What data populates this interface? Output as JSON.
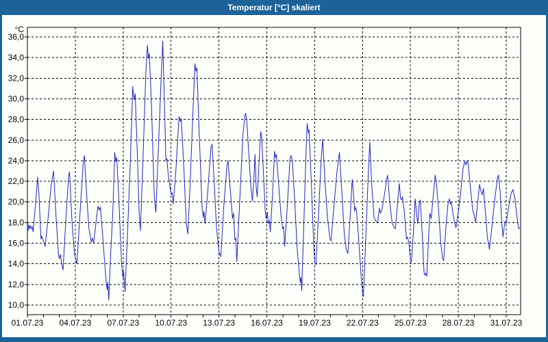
{
  "window": {
    "title": "Temperatur [°C] skaliert"
  },
  "colors": {
    "titlebar": "#1B6399",
    "window_border": "#1B6399",
    "background": "#FDFFFA",
    "plot_background": "#FDFFFA",
    "grid": "#000000",
    "frame": "#000000",
    "line": "#2121CC",
    "title_text": "#FFFFFF",
    "axis_text": "#000000"
  },
  "chart_data": {
    "type": "line",
    "title": "Temperatur [°C] skaliert",
    "ylabel": "°C",
    "xlabel": "",
    "ylim": [
      10,
      36
    ],
    "xlim": [
      1,
      31.9
    ],
    "grid": "dashed",
    "legend": "none",
    "y_ticks": [
      {
        "value": 36,
        "label": "36,0"
      },
      {
        "value": 34,
        "label": "34,0"
      },
      {
        "value": 32,
        "label": "32,0"
      },
      {
        "value": 30,
        "label": "30,0"
      },
      {
        "value": 28,
        "label": "28,0"
      },
      {
        "value": 26,
        "label": "26,0"
      },
      {
        "value": 24,
        "label": "24,0"
      },
      {
        "value": 22,
        "label": "22,0"
      },
      {
        "value": 20,
        "label": "20,0"
      },
      {
        "value": 18,
        "label": "18,0"
      },
      {
        "value": 16,
        "label": "16,0"
      },
      {
        "value": 14,
        "label": "14,0"
      },
      {
        "value": 12,
        "label": "12,0"
      },
      {
        "value": 10,
        "label": "10,0"
      }
    ],
    "x_ticks": [
      {
        "day": 1,
        "label": "01.07.23"
      },
      {
        "day": 4,
        "label": "04.07.23"
      },
      {
        "day": 7,
        "label": "07.07.23"
      },
      {
        "day": 10,
        "label": "10.07.23"
      },
      {
        "day": 13,
        "label": "13.07.23"
      },
      {
        "day": 16,
        "label": "16.07.23"
      },
      {
        "day": 19,
        "label": "19.07.23"
      },
      {
        "day": 22,
        "label": "22.07.23"
      },
      {
        "day": 25,
        "label": "25.07.23"
      },
      {
        "day": 28,
        "label": "28.07.23"
      },
      {
        "day": 31,
        "label": "31.07.23"
      }
    ],
    "x_minor_tick_days": [
      1,
      2,
      3,
      4,
      5,
      6,
      7,
      8,
      9,
      10,
      11,
      12,
      13,
      14,
      15,
      16,
      17,
      18,
      19,
      20,
      21,
      22,
      23,
      24,
      25,
      26,
      27,
      28,
      29,
      30,
      31
    ],
    "series": [
      {
        "name": "Temperatur [°C]",
        "color": "#2121CC",
        "points": [
          [
            1.0,
            17.5
          ],
          [
            1.04,
            17.2
          ],
          [
            1.08,
            17.8
          ],
          [
            1.13,
            17.4
          ],
          [
            1.18,
            17.7
          ],
          [
            1.25,
            17.4
          ],
          [
            1.3,
            17.6
          ],
          [
            1.36,
            17.1
          ],
          [
            1.5,
            19.6
          ],
          [
            1.64,
            22.4
          ],
          [
            1.72,
            20.8
          ],
          [
            1.85,
            16.4
          ],
          [
            1.9,
            16.7
          ],
          [
            2.0,
            16.2
          ],
          [
            2.11,
            15.7
          ],
          [
            2.3,
            18.5
          ],
          [
            2.5,
            21.8
          ],
          [
            2.64,
            23.0
          ],
          [
            2.8,
            18.5
          ],
          [
            2.95,
            14.9
          ],
          [
            3.0,
            14.5
          ],
          [
            3.07,
            14.9
          ],
          [
            3.15,
            14.0
          ],
          [
            3.23,
            13.4
          ],
          [
            3.4,
            18.0
          ],
          [
            3.58,
            22.5
          ],
          [
            3.64,
            22.9
          ],
          [
            3.8,
            18.0
          ],
          [
            3.95,
            15.0
          ],
          [
            4.1,
            14.0
          ],
          [
            4.3,
            19.0
          ],
          [
            4.5,
            23.8
          ],
          [
            4.57,
            24.5
          ],
          [
            4.7,
            21.0
          ],
          [
            4.85,
            17.5
          ],
          [
            5.0,
            16.1
          ],
          [
            5.07,
            16.5
          ],
          [
            5.15,
            16.0
          ],
          [
            5.3,
            18.0
          ],
          [
            5.42,
            19.6
          ],
          [
            5.5,
            19.2
          ],
          [
            5.57,
            19.5
          ],
          [
            5.68,
            17.5
          ],
          [
            5.8,
            15.0
          ],
          [
            5.95,
            12.0
          ],
          [
            6.0,
            11.5
          ],
          [
            6.04,
            12.2
          ],
          [
            6.1,
            10.5
          ],
          [
            6.2,
            14.5
          ],
          [
            6.35,
            19.0
          ],
          [
            6.47,
            24.8
          ],
          [
            6.54,
            23.9
          ],
          [
            6.6,
            24.3
          ],
          [
            6.75,
            19.5
          ],
          [
            6.9,
            14.0
          ],
          [
            6.98,
            12.7
          ],
          [
            7.03,
            13.3
          ],
          [
            7.12,
            11.3
          ],
          [
            7.3,
            18.0
          ],
          [
            7.45,
            24.0
          ],
          [
            7.6,
            31.2
          ],
          [
            7.68,
            29.9
          ],
          [
            7.75,
            30.5
          ],
          [
            7.88,
            25.0
          ],
          [
            8.0,
            19.0
          ],
          [
            8.08,
            17.2
          ],
          [
            8.25,
            24.5
          ],
          [
            8.42,
            32.5
          ],
          [
            8.52,
            35.2
          ],
          [
            8.58,
            33.9
          ],
          [
            8.64,
            34.4
          ],
          [
            8.78,
            29.0
          ],
          [
            8.95,
            20.5
          ],
          [
            9.05,
            19.0
          ],
          [
            9.2,
            25.0
          ],
          [
            9.35,
            31.0
          ],
          [
            9.48,
            35.6
          ],
          [
            9.58,
            30.0
          ],
          [
            9.68,
            24.0
          ],
          [
            9.74,
            24.2
          ],
          [
            9.82,
            22.7
          ],
          [
            9.95,
            21.3
          ],
          [
            10.02,
            20.7
          ],
          [
            10.07,
            20.9
          ],
          [
            10.14,
            19.8
          ],
          [
            10.3,
            23.0
          ],
          [
            10.5,
            28.3
          ],
          [
            10.58,
            27.8
          ],
          [
            10.64,
            28.1
          ],
          [
            10.8,
            23.5
          ],
          [
            10.95,
            18.0
          ],
          [
            11.05,
            16.9
          ],
          [
            11.2,
            22.0
          ],
          [
            11.35,
            28.0
          ],
          [
            11.5,
            33.4
          ],
          [
            11.56,
            32.7
          ],
          [
            11.62,
            33.0
          ],
          [
            11.78,
            26.0
          ],
          [
            11.95,
            19.3
          ],
          [
            12.02,
            18.5
          ],
          [
            12.06,
            19.1
          ],
          [
            12.13,
            17.9
          ],
          [
            12.3,
            21.0
          ],
          [
            12.5,
            25.2
          ],
          [
            12.57,
            25.6
          ],
          [
            12.7,
            22.0
          ],
          [
            12.85,
            17.5
          ],
          [
            13.0,
            15.2
          ],
          [
            13.05,
            14.9
          ],
          [
            13.12,
            14.7
          ],
          [
            13.3,
            19.5
          ],
          [
            13.5,
            23.5
          ],
          [
            13.57,
            24.0
          ],
          [
            13.72,
            21.0
          ],
          [
            13.85,
            18.4
          ],
          [
            13.92,
            18.9
          ],
          [
            14.0,
            16.3
          ],
          [
            14.06,
            16.5
          ],
          [
            14.12,
            14.2
          ],
          [
            14.3,
            20.0
          ],
          [
            14.5,
            26.5
          ],
          [
            14.62,
            28.3
          ],
          [
            14.67,
            28.6
          ],
          [
            14.74,
            28.0
          ],
          [
            14.88,
            24.5
          ],
          [
            15.0,
            21.5
          ],
          [
            15.1,
            20.1
          ],
          [
            15.2,
            22.5
          ],
          [
            15.26,
            24.6
          ],
          [
            15.33,
            21.5
          ],
          [
            15.4,
            20.5
          ],
          [
            15.52,
            24.0
          ],
          [
            15.62,
            26.8
          ],
          [
            15.68,
            26.3
          ],
          [
            15.8,
            22.5
          ],
          [
            15.9,
            19.1
          ],
          [
            15.96,
            18.4
          ],
          [
            16.03,
            19.0
          ],
          [
            16.1,
            17.9
          ],
          [
            16.16,
            18.2
          ],
          [
            16.22,
            17.1
          ],
          [
            16.35,
            20.5
          ],
          [
            16.48,
            24.9
          ],
          [
            16.55,
            24.3
          ],
          [
            16.6,
            24.6
          ],
          [
            16.75,
            21.5
          ],
          [
            16.9,
            18.5
          ],
          [
            17.0,
            17.4
          ],
          [
            17.05,
            17.6
          ],
          [
            17.12,
            15.7
          ],
          [
            17.3,
            20.0
          ],
          [
            17.45,
            24.2
          ],
          [
            17.52,
            24.5
          ],
          [
            17.6,
            24.0
          ],
          [
            17.75,
            20.0
          ],
          [
            17.9,
            15.5
          ],
          [
            18.05,
            12.8
          ],
          [
            18.1,
            12.2
          ],
          [
            18.14,
            12.7
          ],
          [
            18.19,
            11.4
          ],
          [
            18.32,
            18.0
          ],
          [
            18.45,
            24.5
          ],
          [
            18.53,
            27.6
          ],
          [
            18.6,
            26.7
          ],
          [
            18.65,
            27.0
          ],
          [
            18.8,
            21.5
          ],
          [
            18.95,
            15.5
          ],
          [
            19.0,
            14.1
          ],
          [
            19.08,
            13.9
          ],
          [
            19.25,
            19.0
          ],
          [
            19.4,
            24.0
          ],
          [
            19.5,
            26.1
          ],
          [
            19.65,
            22.0
          ],
          [
            19.8,
            18.5
          ],
          [
            19.95,
            16.5
          ],
          [
            20.02,
            16.2
          ],
          [
            20.2,
            19.5
          ],
          [
            20.4,
            23.0
          ],
          [
            20.55,
            24.8
          ],
          [
            20.7,
            21.0
          ],
          [
            20.85,
            17.0
          ],
          [
            20.97,
            15.4
          ],
          [
            21.03,
            15.2
          ],
          [
            21.08,
            15.0
          ],
          [
            21.22,
            18.5
          ],
          [
            21.35,
            22.2
          ],
          [
            21.44,
            20.6
          ],
          [
            21.5,
            19.1
          ],
          [
            21.56,
            19.5
          ],
          [
            21.62,
            19.2
          ],
          [
            21.75,
            16.5
          ],
          [
            21.9,
            13.0
          ],
          [
            22.0,
            11.1
          ],
          [
            22.05,
            10.8
          ],
          [
            22.2,
            16.5
          ],
          [
            22.35,
            22.5
          ],
          [
            22.45,
            25.8
          ],
          [
            22.58,
            21.5
          ],
          [
            22.72,
            18.5
          ],
          [
            22.85,
            18.1
          ],
          [
            22.95,
            18.0
          ],
          [
            23.05,
            19.4
          ],
          [
            23.12,
            18.9
          ],
          [
            23.2,
            19.2
          ],
          [
            23.35,
            20.5
          ],
          [
            23.5,
            22.2
          ],
          [
            23.57,
            22.6
          ],
          [
            23.7,
            20.0
          ],
          [
            23.85,
            18.0
          ],
          [
            23.98,
            17.5
          ],
          [
            24.06,
            17.4
          ],
          [
            24.2,
            20.0
          ],
          [
            24.3,
            21.8
          ],
          [
            24.38,
            20.3
          ],
          [
            24.44,
            20.2
          ],
          [
            24.5,
            20.5
          ],
          [
            24.62,
            19.0
          ],
          [
            24.75,
            16.4
          ],
          [
            24.82,
            16.6
          ],
          [
            24.9,
            16.0
          ],
          [
            25.0,
            14.4
          ],
          [
            25.06,
            14.2
          ],
          [
            25.2,
            17.5
          ],
          [
            25.3,
            20.3
          ],
          [
            25.4,
            18.6
          ],
          [
            25.46,
            17.9
          ],
          [
            25.55,
            19.8
          ],
          [
            25.62,
            20.2
          ],
          [
            25.75,
            16.5
          ],
          [
            25.85,
            13.2
          ],
          [
            25.9,
            12.9
          ],
          [
            25.96,
            13.1
          ],
          [
            26.02,
            12.8
          ],
          [
            26.15,
            17.0
          ],
          [
            26.22,
            18.9
          ],
          [
            26.3,
            18.4
          ],
          [
            26.42,
            20.5
          ],
          [
            26.55,
            22.6
          ],
          [
            26.62,
            22.0
          ],
          [
            26.75,
            19.5
          ],
          [
            26.9,
            16.0
          ],
          [
            27.0,
            14.6
          ],
          [
            27.08,
            14.3
          ],
          [
            27.22,
            17.5
          ],
          [
            27.35,
            19.8
          ],
          [
            27.44,
            20.3
          ],
          [
            27.5,
            19.8
          ],
          [
            27.56,
            20.0
          ],
          [
            27.7,
            18.5
          ],
          [
            27.85,
            17.5
          ],
          [
            28.0,
            19.0
          ],
          [
            28.15,
            21.0
          ],
          [
            28.3,
            23.3
          ],
          [
            28.4,
            23.9
          ],
          [
            28.48,
            23.6
          ],
          [
            28.55,
            24.0
          ],
          [
            28.62,
            23.7
          ],
          [
            28.75,
            21.5
          ],
          [
            28.9,
            19.2
          ],
          [
            29.0,
            18.7
          ],
          [
            29.08,
            18.0
          ],
          [
            29.2,
            19.8
          ],
          [
            29.33,
            21.7
          ],
          [
            29.42,
            21.0
          ],
          [
            29.5,
            20.7
          ],
          [
            29.57,
            21.3
          ],
          [
            29.7,
            19.0
          ],
          [
            29.82,
            16.5
          ],
          [
            29.88,
            16.1
          ],
          [
            29.95,
            15.4
          ],
          [
            30.1,
            17.5
          ],
          [
            30.3,
            20.5
          ],
          [
            30.45,
            22.3
          ],
          [
            30.52,
            22.6
          ],
          [
            30.62,
            21.0
          ],
          [
            30.72,
            18.0
          ],
          [
            30.8,
            16.6
          ],
          [
            30.92,
            18.1
          ],
          [
            31.0,
            17.9
          ],
          [
            31.15,
            19.5
          ],
          [
            31.3,
            20.8
          ],
          [
            31.42,
            21.2
          ],
          [
            31.55,
            20.3
          ],
          [
            31.68,
            18.5
          ],
          [
            31.78,
            17.4
          ],
          [
            31.86,
            17.5
          ]
        ]
      }
    ]
  }
}
